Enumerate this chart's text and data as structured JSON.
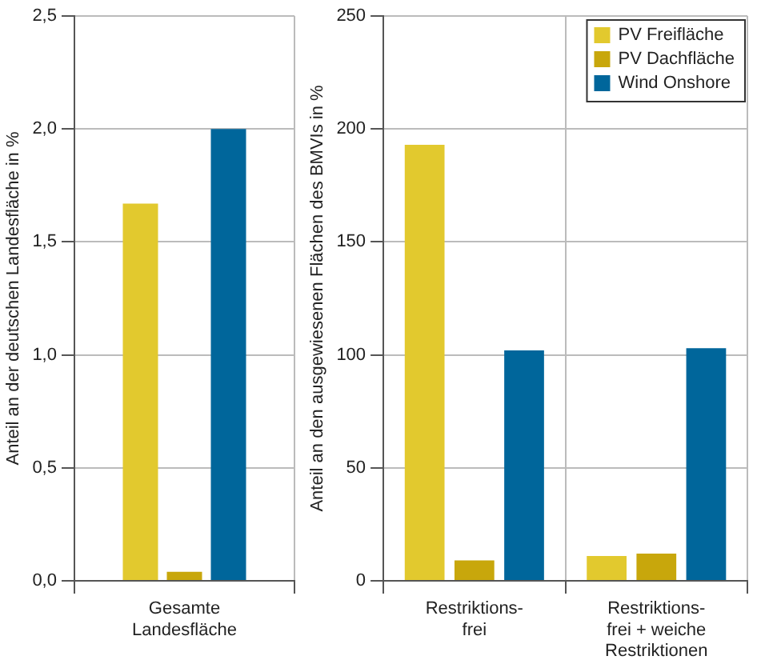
{
  "chart_data": [
    {
      "type": "bar",
      "ylabel": "Anteil an der deutschen Landesfläche in %",
      "categories": [
        "Gesamte\nLandesfläche"
      ],
      "series": [
        {
          "color": "#e2c92e",
          "values": [
            1.67
          ]
        },
        {
          "color": "#c8a70c",
          "values": [
            0.04
          ]
        },
        {
          "color": "#00669b",
          "values": [
            2.0
          ]
        }
      ],
      "ylim": [
        0,
        2.5
      ],
      "yticks": [
        {
          "value": 0,
          "label": "0,0"
        },
        {
          "value": 0.5,
          "label": "0,5"
        },
        {
          "value": 1.0,
          "label": "1,0"
        },
        {
          "value": 1.5,
          "label": "1,5"
        },
        {
          "value": 2.0,
          "label": "2,0"
        },
        {
          "value": 2.5,
          "label": "2,5"
        }
      ],
      "grid": true,
      "legend": false
    },
    {
      "type": "bar",
      "ylabel": "Anteil an den ausgewiesenen Flächen des BMVIs in %",
      "categories": [
        "Restriktions-\nfrei",
        "Restriktions-\nfrei + weiche\nRestriktionen"
      ],
      "series": [
        {
          "name": "PV Freifläche",
          "color": "#e2c92e",
          "values": [
            193,
            11
          ]
        },
        {
          "name": "PV Dachfläche",
          "color": "#c8a70c",
          "values": [
            9,
            12
          ]
        },
        {
          "name": "Wind Onshore",
          "color": "#00669b",
          "values": [
            102,
            103
          ]
        }
      ],
      "ylim": [
        0,
        250
      ],
      "yticks": [
        0,
        50,
        100,
        150,
        200,
        250
      ],
      "grid": true,
      "legend": "top right"
    }
  ]
}
